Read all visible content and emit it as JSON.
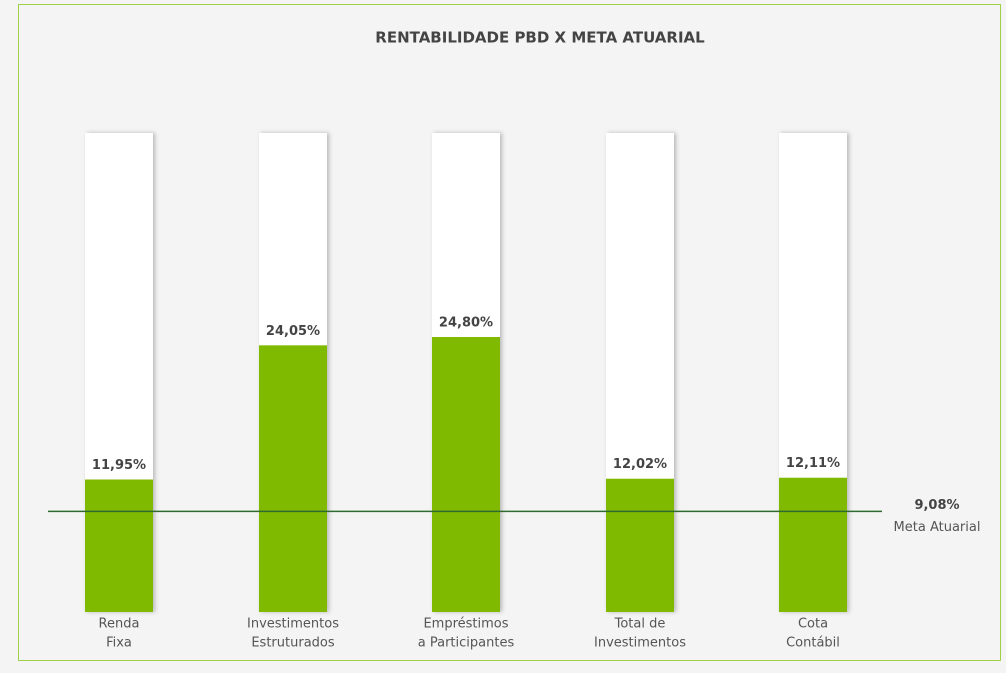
{
  "chart_data": {
    "type": "bar",
    "title": "RENTABILIDADE PBD X META ATUARIAL",
    "categories": [
      [
        "Renda",
        "Fixa"
      ],
      [
        "Investimentos",
        "Estruturados"
      ],
      [
        "Empréstimos",
        "a Participantes"
      ],
      [
        "Total de",
        "Investimentos"
      ],
      [
        "Cota",
        "Contábil"
      ]
    ],
    "values": [
      11.95,
      24.05,
      24.8,
      12.02,
      12.11
    ],
    "value_labels": [
      "11,95%",
      "24,05%",
      "24,80%",
      "12,02%",
      "12,11%"
    ],
    "color": "#80ba00",
    "ylim": [
      0,
      43.2
    ],
    "reference_line": {
      "value": 9.08,
      "value_label": "9,08%",
      "label": "Meta Atuarial",
      "color": "#2f6b2f"
    }
  }
}
